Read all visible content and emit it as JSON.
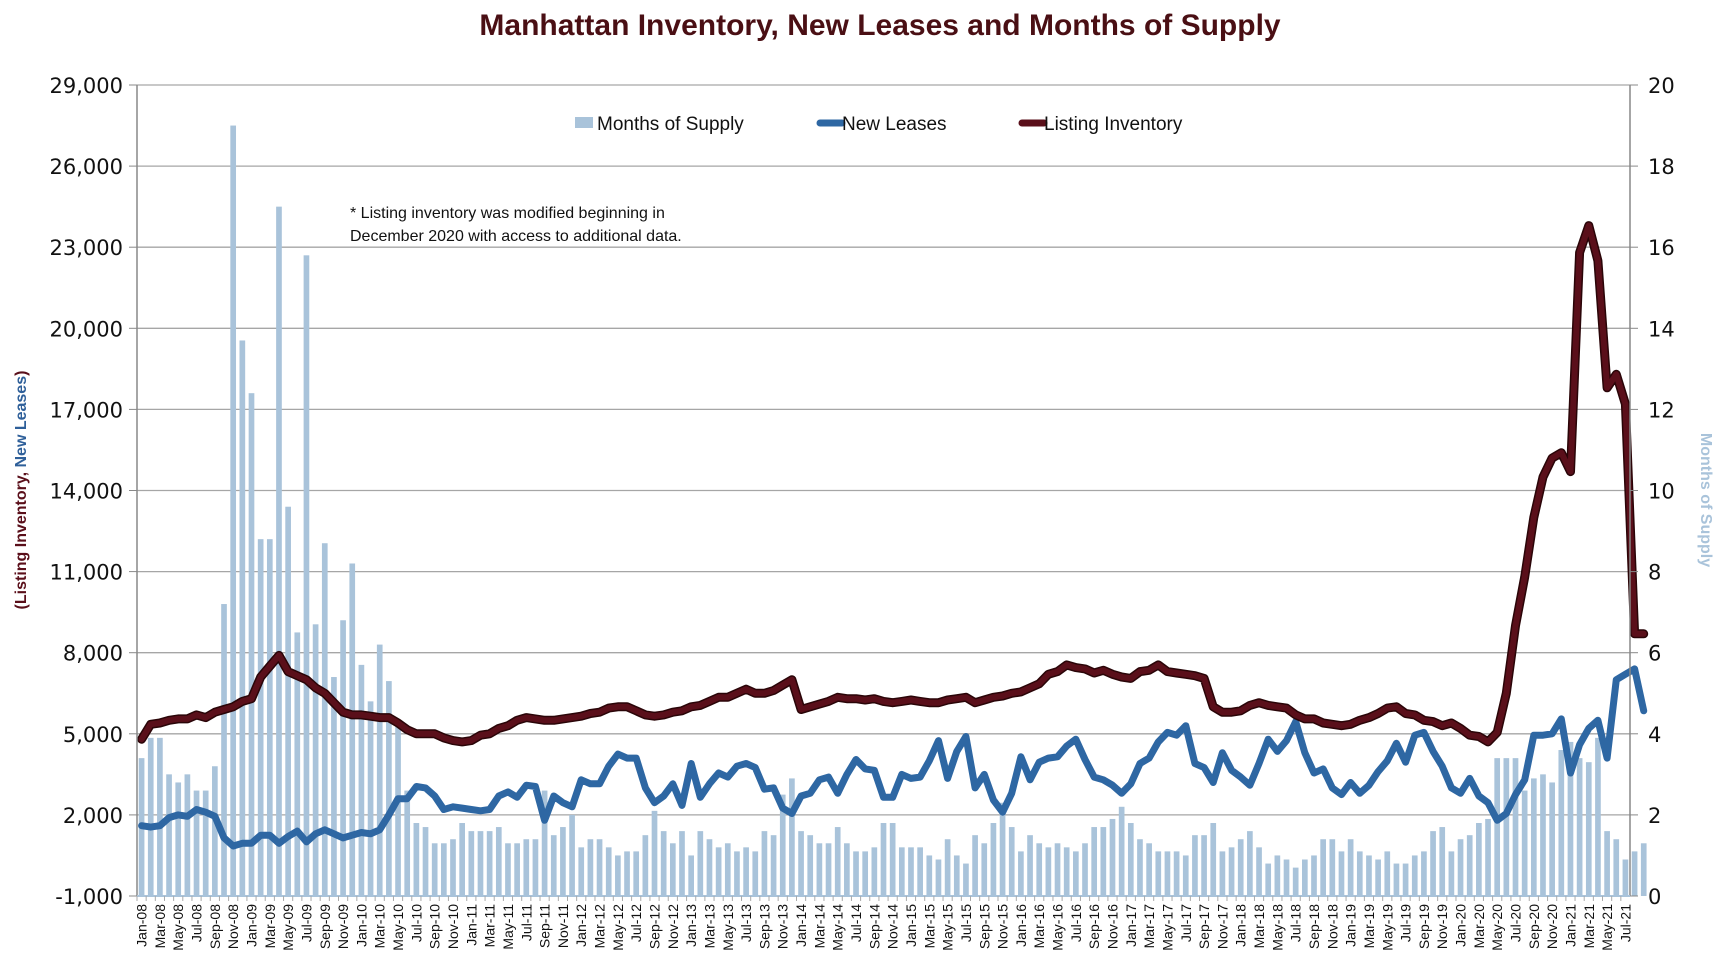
{
  "chart_data": {
    "type": "bar+line",
    "title": "Manhattan Inventory, New Leases and Months of Supply",
    "ylabel_left_parts": [
      {
        "text": "(Listing Inventory, ",
        "color": "#5a0f1a"
      },
      {
        "text": "New Leases",
        "color": "#2e5f99"
      },
      {
        "text": ")",
        "color": "#5a0f1a"
      }
    ],
    "ylabel_right": "Months of Supply",
    "ylabel_right_color": "#a9c3da",
    "ylim_left": [
      -1000,
      29000
    ],
    "ylim_right": [
      0,
      20
    ],
    "yticks_left": [
      "29,000",
      "26,000",
      "23,000",
      "20,000",
      "17,000",
      "14,000",
      "11,000",
      "8,000",
      "5,000",
      "2,000",
      "-1,000"
    ],
    "yticks_right": [
      "20",
      "18",
      "16",
      "14",
      "12",
      "10",
      "8",
      "6",
      "4",
      "2",
      "0"
    ],
    "grid": true,
    "legend_position": "top-center",
    "legend": [
      {
        "label": "Months of Supply",
        "kind": "bar",
        "color": "#a9c3da"
      },
      {
        "label": "New Leases",
        "kind": "line",
        "color": "#2e67a3"
      },
      {
        "label": "Listing Inventory",
        "kind": "line",
        "color": "#5a0f1a"
      }
    ],
    "annotation": [
      "* Listing inventory was modified beginning in",
      "December 2020 with access to additional data."
    ],
    "x_start": "Jan-08",
    "x_labels_every": 2,
    "categories": [
      "Jan-08",
      "Feb-08",
      "Mar-08",
      "Apr-08",
      "May-08",
      "Jun-08",
      "Jul-08",
      "Aug-08",
      "Sep-08",
      "Oct-08",
      "Nov-08",
      "Dec-08",
      "Jan-09",
      "Feb-09",
      "Mar-09",
      "Apr-09",
      "May-09",
      "Jun-09",
      "Jul-09",
      "Aug-09",
      "Sep-09",
      "Oct-09",
      "Nov-09",
      "Dec-09",
      "Jan-10",
      "Feb-10",
      "Mar-10",
      "Apr-10",
      "May-10",
      "Jun-10",
      "Jul-10",
      "Aug-10",
      "Sep-10",
      "Oct-10",
      "Nov-10",
      "Dec-10",
      "Jan-11",
      "Feb-11",
      "Mar-11",
      "Apr-11",
      "May-11",
      "Jun-11",
      "Jul-11",
      "Aug-11",
      "Sep-11",
      "Oct-11",
      "Nov-11",
      "Dec-11",
      "Jan-12",
      "Feb-12",
      "Mar-12",
      "Apr-12",
      "May-12",
      "Jun-12",
      "Jul-12",
      "Aug-12",
      "Sep-12",
      "Oct-12",
      "Nov-12",
      "Dec-12",
      "Jan-13",
      "Feb-13",
      "Mar-13",
      "Apr-13",
      "May-13",
      "Jun-13",
      "Jul-13",
      "Aug-13",
      "Sep-13",
      "Oct-13",
      "Nov-13",
      "Dec-13",
      "Jan-14",
      "Feb-14",
      "Mar-14",
      "Apr-14",
      "May-14",
      "Jun-14",
      "Jul-14",
      "Aug-14",
      "Sep-14",
      "Oct-14",
      "Nov-14",
      "Dec-14",
      "Jan-15",
      "Feb-15",
      "Mar-15",
      "Apr-15",
      "May-15",
      "Jun-15",
      "Jul-15",
      "Aug-15",
      "Sep-15",
      "Oct-15",
      "Nov-15",
      "Dec-15",
      "Jan-16",
      "Feb-16",
      "Mar-16",
      "Apr-16",
      "May-16",
      "Jun-16",
      "Jul-16",
      "Aug-16",
      "Sep-16",
      "Oct-16",
      "Nov-16",
      "Dec-16",
      "Jan-17",
      "Feb-17",
      "Mar-17",
      "Apr-17",
      "May-17",
      "Jun-17",
      "Jul-17",
      "Aug-17",
      "Sep-17",
      "Oct-17",
      "Nov-17",
      "Dec-17",
      "Jan-18",
      "Feb-18",
      "Mar-18",
      "Apr-18",
      "May-18",
      "Jun-18",
      "Jul-18",
      "Aug-18",
      "Sep-18",
      "Oct-18",
      "Nov-18",
      "Dec-18",
      "Jan-19",
      "Feb-19",
      "Mar-19",
      "Apr-19",
      "May-19",
      "Jun-19",
      "Jul-19",
      "Aug-19",
      "Sep-19",
      "Oct-19",
      "Nov-19",
      "Dec-19",
      "Jan-20",
      "Feb-20",
      "Mar-20",
      "Apr-20",
      "May-20",
      "Jun-20",
      "Jul-20",
      "Aug-20",
      "Sep-20",
      "Oct-20",
      "Nov-20",
      "Dec-20",
      "Jan-21",
      "Feb-21",
      "Mar-21",
      "Apr-21",
      "May-21",
      "Jun-21",
      "Jul-21"
    ],
    "series": [
      {
        "name": "Months of Supply",
        "axis": "right",
        "type": "bar",
        "values": [
          3.4,
          3.9,
          3.9,
          3.0,
          2.8,
          3.0,
          2.6,
          2.6,
          3.2,
          7.2,
          19.0,
          13.7,
          12.4,
          8.8,
          8.8,
          17.0,
          9.6,
          6.5,
          15.8,
          6.7,
          8.7,
          5.4,
          6.8,
          8.2,
          5.7,
          4.8,
          6.2,
          5.3,
          4.3,
          2.6,
          1.8,
          1.7,
          1.3,
          1.3,
          1.4,
          1.8,
          1.6,
          1.6,
          1.6,
          1.7,
          1.3,
          1.3,
          1.4,
          1.4,
          2.6,
          1.5,
          1.7,
          2.0,
          1.2,
          1.4,
          1.4,
          1.2,
          1.0,
          1.1,
          1.1,
          1.5,
          2.1,
          1.6,
          1.3,
          1.6,
          1.0,
          1.6,
          1.4,
          1.2,
          1.3,
          1.1,
          1.2,
          1.1,
          1.6,
          1.5,
          2.5,
          2.9,
          1.6,
          1.5,
          1.3,
          1.3,
          1.7,
          1.3,
          1.1,
          1.1,
          1.2,
          1.8,
          1.8,
          1.2,
          1.2,
          1.2,
          1.0,
          0.9,
          1.4,
          1.0,
          0.8,
          1.5,
          1.3,
          1.8,
          2.3,
          1.7,
          1.1,
          1.5,
          1.3,
          1.2,
          1.3,
          1.2,
          1.1,
          1.3,
          1.7,
          1.7,
          1.9,
          2.2,
          1.8,
          1.4,
          1.3,
          1.1,
          1.1,
          1.1,
          1.0,
          1.5,
          1.5,
          1.8,
          1.1,
          1.2,
          1.4,
          1.6,
          1.2,
          0.8,
          1.0,
          0.9,
          0.7,
          0.9,
          1.0,
          1.4,
          1.4,
          1.1,
          1.4,
          1.1,
          1.0,
          0.9,
          1.1,
          0.8,
          0.8,
          1.0,
          1.1,
          1.6,
          1.7,
          1.1,
          1.4,
          1.5,
          1.8,
          1.9,
          3.4,
          3.4,
          3.4,
          2.6,
          2.9,
          3.0,
          2.8,
          3.6,
          3.8,
          3.4,
          3.3,
          3.9,
          1.6,
          1.4,
          0.9,
          1.1,
          1.3
        ]
      },
      {
        "name": "New Leases",
        "axis": "left",
        "type": "line",
        "values": [
          1600,
          1550,
          1600,
          1900,
          2000,
          1950,
          2200,
          2100,
          1950,
          1150,
          850,
          950,
          950,
          1250,
          1250,
          950,
          1200,
          1400,
          1000,
          1300,
          1450,
          1300,
          1150,
          1250,
          1350,
          1300,
          1450,
          2000,
          2600,
          2600,
          3050,
          3000,
          2700,
          2200,
          2300,
          2250,
          2200,
          2150,
          2200,
          2700,
          2850,
          2650,
          3100,
          3050,
          1800,
          2700,
          2450,
          2300,
          3300,
          3150,
          3150,
          3800,
          4250,
          4100,
          4100,
          3000,
          2450,
          2700,
          3150,
          2350,
          3900,
          2650,
          3150,
          3550,
          3400,
          3800,
          3900,
          3750,
          2950,
          3000,
          2250,
          2050,
          2700,
          2800,
          3300,
          3400,
          2800,
          3500,
          4050,
          3700,
          3650,
          2650,
          2650,
          3500,
          3350,
          3400,
          4000,
          4750,
          3350,
          4350,
          4900,
          3000,
          3500,
          2550,
          2100,
          2800,
          4150,
          3300,
          3950,
          4100,
          4150,
          4550,
          4800,
          4050,
          3400,
          3300,
          3100,
          2800,
          3150,
          3900,
          4100,
          4700,
          5050,
          4950,
          5300,
          3900,
          3750,
          3200,
          4300,
          3650,
          3400,
          3100,
          3900,
          4800,
          4350,
          4750,
          5450,
          4300,
          3550,
          3700,
          3000,
          2750,
          3200,
          2800,
          3100,
          3600,
          4000,
          4650,
          3950,
          4950,
          5050,
          4350,
          3800,
          3000,
          2800,
          3350,
          2700,
          2450,
          1800,
          2050,
          2750,
          3300,
          4950,
          4950,
          5000,
          5550,
          3550,
          4600,
          5200,
          5500,
          4100,
          7000,
          7200,
          7400,
          5850
        ]
      },
      {
        "name": "Listing Inventory",
        "axis": "left",
        "type": "line",
        "values": [
          4800,
          5350,
          5400,
          5500,
          5550,
          5550,
          5700,
          5600,
          5800,
          5900,
          6000,
          6200,
          6300,
          7100,
          7500,
          7900,
          7300,
          7150,
          7000,
          6700,
          6500,
          6150,
          5800,
          5700,
          5700,
          5650,
          5600,
          5600,
          5400,
          5150,
          5000,
          5000,
          5000,
          4850,
          4750,
          4700,
          4750,
          4950,
          5000,
          5200,
          5300,
          5500,
          5600,
          5550,
          5500,
          5500,
          5550,
          5600,
          5650,
          5750,
          5800,
          5950,
          6000,
          6000,
          5850,
          5700,
          5650,
          5700,
          5800,
          5850,
          6000,
          6050,
          6200,
          6350,
          6350,
          6500,
          6650,
          6500,
          6500,
          6600,
          6800,
          7000,
          5900,
          6000,
          6100,
          6200,
          6350,
          6300,
          6300,
          6250,
          6300,
          6200,
          6150,
          6200,
          6250,
          6200,
          6150,
          6150,
          6250,
          6300,
          6350,
          6150,
          6250,
          6350,
          6400,
          6500,
          6550,
          6700,
          6850,
          7200,
          7300,
          7550,
          7450,
          7400,
          7250,
          7350,
          7200,
          7100,
          7050,
          7300,
          7350,
          7550,
          7300,
          7250,
          7200,
          7150,
          7050,
          6000,
          5800,
          5800,
          5850,
          6050,
          6150,
          6050,
          6000,
          5950,
          5700,
          5550,
          5550,
          5400,
          5350,
          5300,
          5350,
          5500,
          5600,
          5750,
          5950,
          6000,
          5750,
          5700,
          5500,
          5450,
          5300,
          5400,
          5200,
          4950,
          4900,
          4700,
          5050,
          6500,
          9000,
          10800,
          13000,
          14500,
          15200,
          15400,
          14700,
          22800,
          23800,
          22500,
          17800,
          18300,
          17200,
          8700,
          8700
        ]
      }
    ]
  }
}
